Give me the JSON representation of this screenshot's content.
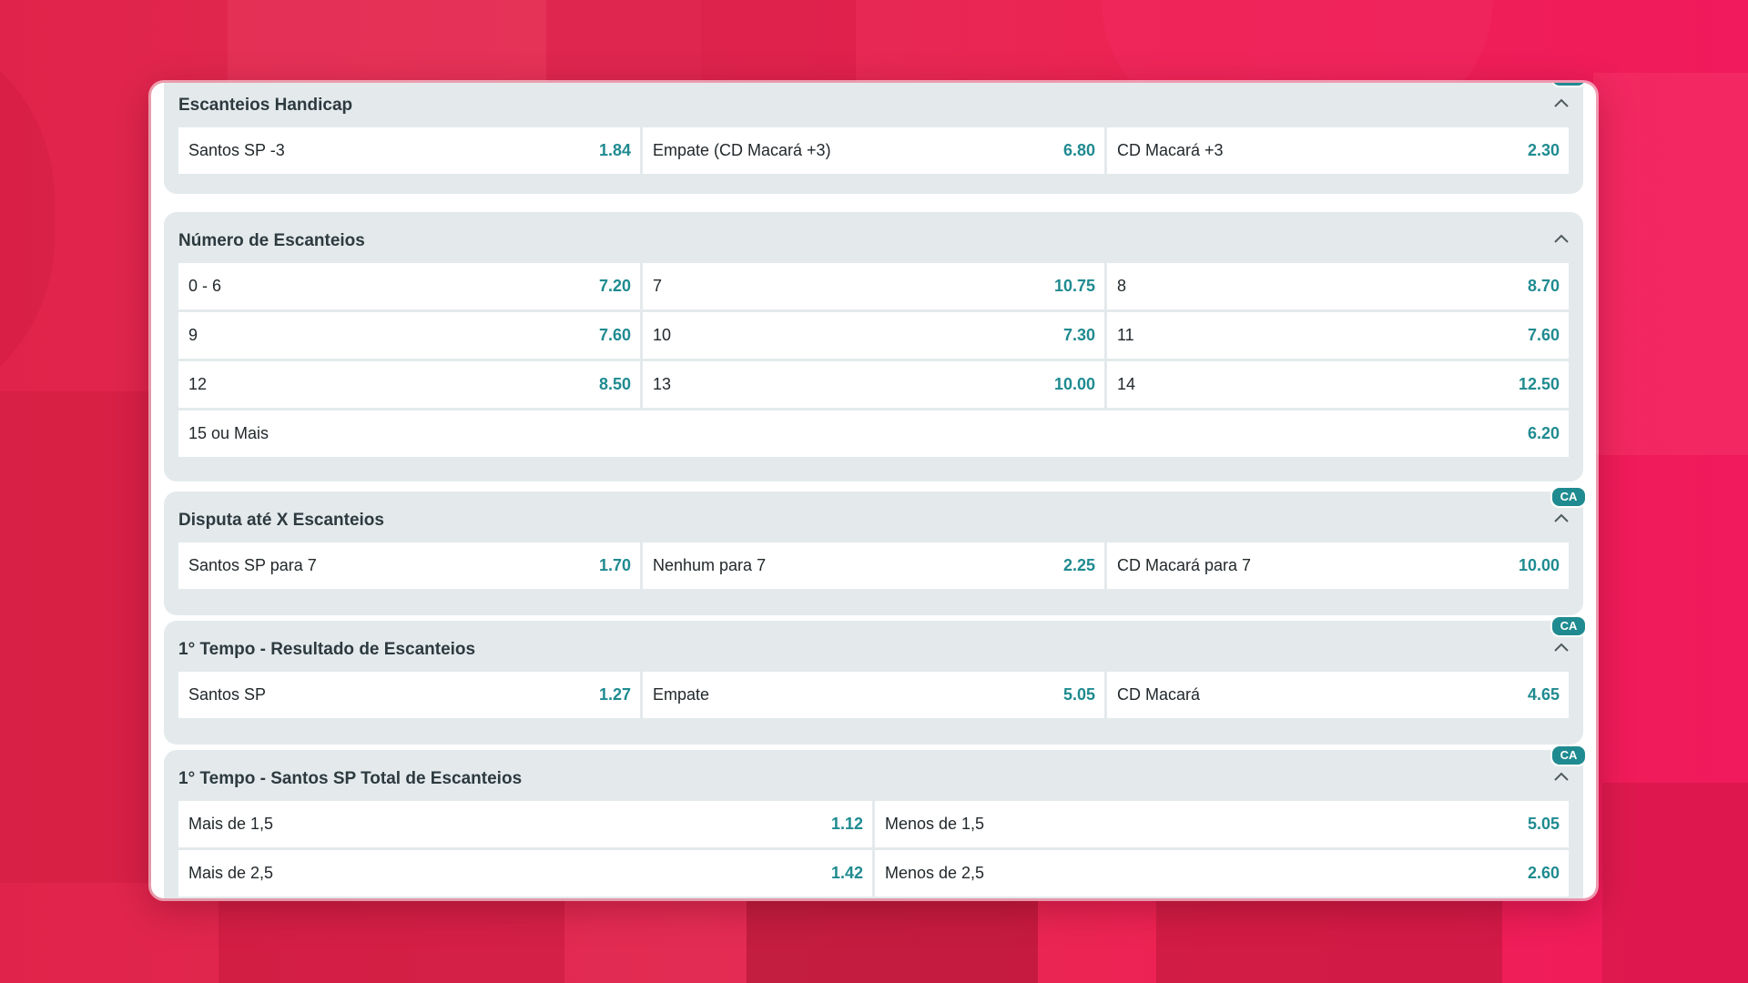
{
  "markets": [
    {
      "title": "Escanteios Handicap",
      "badge": "CA",
      "rows": [
        [
          {
            "label": "Santos SP -3",
            "odd": "1.84"
          },
          {
            "label": "Empate (CD Macará +3)",
            "odd": "6.80"
          },
          {
            "label": "CD Macará +3",
            "odd": "2.30"
          }
        ]
      ]
    },
    {
      "title": "Número de Escanteios",
      "badge": "",
      "rows": [
        [
          {
            "label": "0 - 6",
            "odd": "7.20"
          },
          {
            "label": "7",
            "odd": "10.75"
          },
          {
            "label": "8",
            "odd": "8.70"
          }
        ],
        [
          {
            "label": "9",
            "odd": "7.60"
          },
          {
            "label": "10",
            "odd": "7.30"
          },
          {
            "label": "11",
            "odd": "7.60"
          }
        ],
        [
          {
            "label": "12",
            "odd": "8.50"
          },
          {
            "label": "13",
            "odd": "10.00"
          },
          {
            "label": "14",
            "odd": "12.50"
          }
        ],
        [
          {
            "label": "15 ou Mais",
            "odd": "6.20"
          }
        ]
      ]
    },
    {
      "title": "Disputa até X Escanteios",
      "badge": "CA",
      "rows": [
        [
          {
            "label": "Santos SP para 7",
            "odd": "1.70"
          },
          {
            "label": "Nenhum para 7",
            "odd": "2.25"
          },
          {
            "label": "CD Macará para 7",
            "odd": "10.00"
          }
        ]
      ]
    },
    {
      "title": "1° Tempo - Resultado de Escanteios",
      "badge": "CA",
      "rows": [
        [
          {
            "label": "Santos SP",
            "odd": "1.27"
          },
          {
            "label": "Empate",
            "odd": "5.05"
          },
          {
            "label": "CD Macará",
            "odd": "4.65"
          }
        ]
      ]
    },
    {
      "title": "1° Tempo - Santos SP Total de Escanteios",
      "badge": "CA",
      "rows": [
        [
          {
            "label": "Mais de 1,5",
            "odd": "1.12"
          },
          {
            "label": "Menos de 1,5",
            "odd": "5.05"
          }
        ],
        [
          {
            "label": "Mais de 2,5",
            "odd": "1.42"
          },
          {
            "label": "Menos de 2,5",
            "odd": "2.60"
          }
        ]
      ]
    }
  ]
}
